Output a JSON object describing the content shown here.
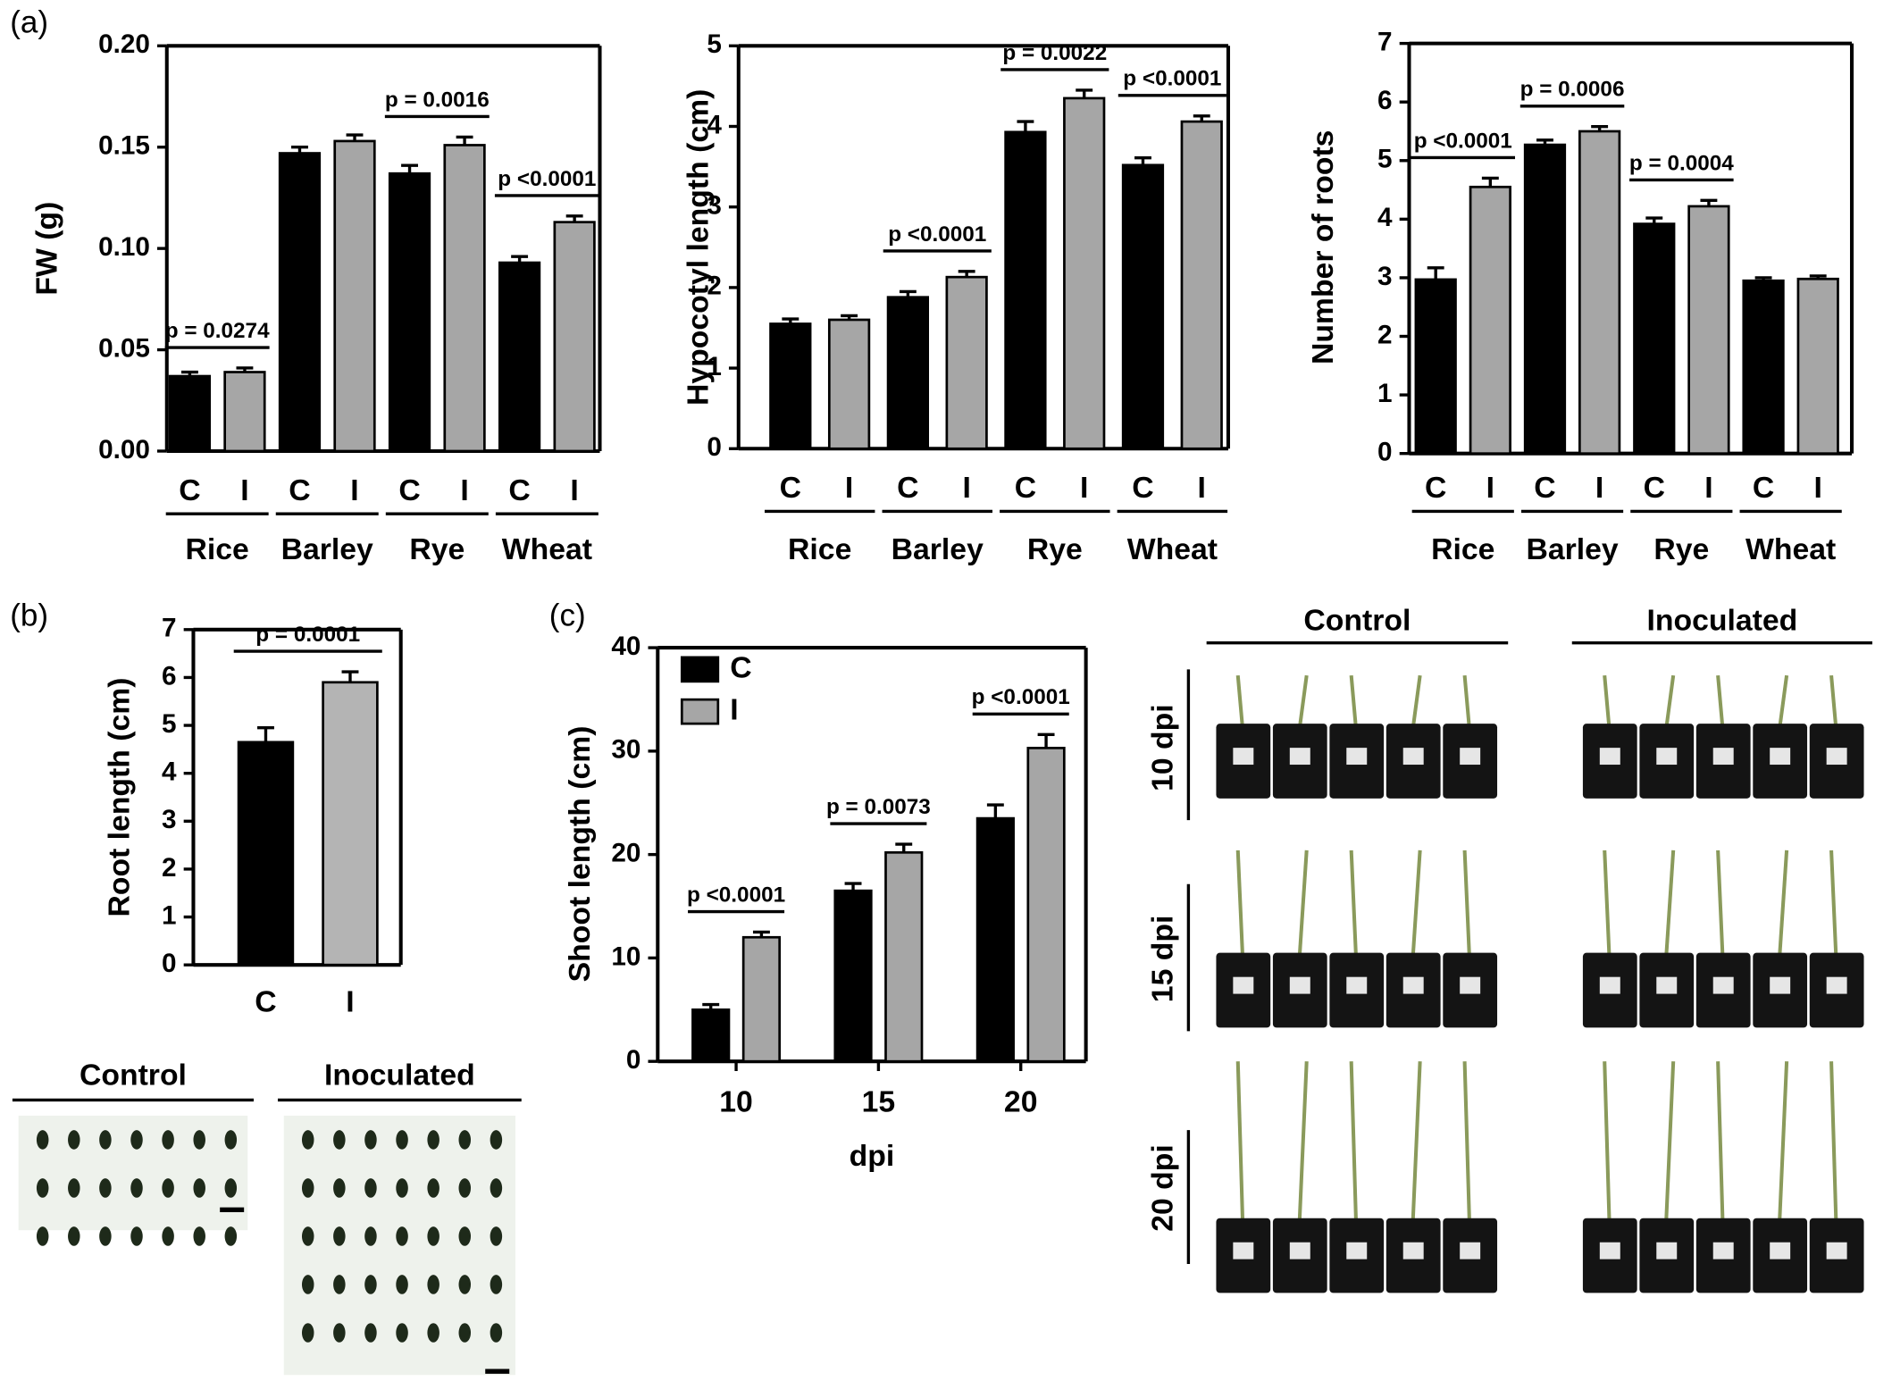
{
  "panels": [
    "(a)",
    "(b)",
    "(c)"
  ],
  "chart_data": [
    {
      "type": "bar",
      "ylabel": "FW (g)",
      "categories": [
        "C",
        "I",
        "C",
        "I",
        "C",
        "I",
        "C",
        "I"
      ],
      "groups": [
        "Rice",
        "Barley",
        "Rye",
        "Wheat"
      ],
      "values": [
        0.037,
        0.039,
        0.147,
        0.153,
        0.137,
        0.151,
        0.093,
        0.113
      ],
      "errors": [
        0.002,
        0.002,
        0.003,
        0.003,
        0.004,
        0.004,
        0.003,
        0.003
      ],
      "colors": [
        "#000000",
        "#a6a6a6",
        "#000000",
        "#a6a6a6",
        "#000000",
        "#a6a6a6",
        "#000000",
        "#a6a6a6"
      ],
      "ylim": [
        0,
        0.2
      ],
      "yticks": [
        {
          "value": 0,
          "label": "0.00"
        },
        {
          "value": 0.05,
          "label": "0.05"
        },
        {
          "value": 0.1,
          "label": "0.10"
        },
        {
          "value": 0.15,
          "label": "0.15"
        },
        {
          "value": 0.2,
          "label": "0.20"
        }
      ],
      "annotations": [
        "p = 0.0274",
        "p = 0.0016",
        "p <0.0001"
      ]
    },
    {
      "type": "bar",
      "ylabel": "Hypocotyl length (cm)",
      "categories": [
        "C",
        "I",
        "C",
        "I",
        "C",
        "I",
        "C",
        "I"
      ],
      "groups": [
        "Rice",
        "Barley",
        "Rye",
        "Wheat"
      ],
      "values": [
        1.55,
        1.6,
        1.88,
        2.13,
        3.93,
        4.35,
        3.52,
        4.06
      ],
      "errors": [
        0.06,
        0.05,
        0.07,
        0.07,
        0.13,
        0.1,
        0.09,
        0.07
      ],
      "colors": [
        "#000000",
        "#a6a6a6",
        "#000000",
        "#a6a6a6",
        "#000000",
        "#a6a6a6",
        "#000000",
        "#a6a6a6"
      ],
      "ylim": [
        0,
        5
      ],
      "yticks": [
        0,
        1,
        2,
        3,
        4,
        5
      ],
      "annotations": [
        "p <0.0001",
        "p = 0.0022",
        "p <0.0001"
      ]
    },
    {
      "type": "bar",
      "ylabel": "Number of roots",
      "categories": [
        "C",
        "I",
        "C",
        "I",
        "C",
        "I",
        "C",
        "I"
      ],
      "groups": [
        "Rice",
        "Barley",
        "Rye",
        "Wheat"
      ],
      "values": [
        2.97,
        4.55,
        5.27,
        5.5,
        3.92,
        4.22,
        2.95,
        2.98
      ],
      "errors": [
        0.2,
        0.15,
        0.08,
        0.08,
        0.1,
        0.1,
        0.05,
        0.05
      ],
      "colors": [
        "#000000",
        "#a6a6a6",
        "#000000",
        "#a6a6a6",
        "#000000",
        "#a6a6a6",
        "#000000",
        "#a6a6a6"
      ],
      "ylim": [
        0,
        7
      ],
      "yticks": [
        0,
        1,
        2,
        3,
        4,
        5,
        6,
        7
      ],
      "annotations": [
        "p <0.0001",
        "p = 0.0006",
        "p = 0.0004"
      ]
    },
    {
      "type": "bar",
      "ylabel": "Root length (cm)",
      "categories": [
        "C",
        "I"
      ],
      "values": [
        4.65,
        5.9
      ],
      "errors": [
        0.3,
        0.22
      ],
      "colors": [
        "#000000",
        "#b4b4b4"
      ],
      "ylim": [
        0,
        7
      ],
      "yticks": [
        0,
        1,
        2,
        3,
        4,
        5,
        6,
        7
      ],
      "annotations": [
        "p = 0.0001"
      ]
    },
    {
      "type": "grouped_bar",
      "ylabel": "Shoot length (cm)",
      "xlabel": "dpi",
      "categories": [
        "10",
        "15",
        "20"
      ],
      "series": [
        {
          "name": "C",
          "color": "#000000",
          "values": [
            5,
            16.5,
            23.5
          ],
          "errors": [
            0.5,
            0.7,
            1.3
          ]
        },
        {
          "name": "I",
          "color": "#a6a6a6",
          "values": [
            12,
            20.2,
            30.3
          ],
          "errors": [
            0.5,
            0.8,
            1.3
          ]
        }
      ],
      "ylim": [
        0,
        40
      ],
      "yticks": [
        0,
        10,
        20,
        30,
        40
      ],
      "legend": "upper left",
      "annotations": [
        "p <0.0001",
        "p = 0.0073",
        "p <0.0001"
      ]
    }
  ],
  "photos": {
    "b": {
      "columns": [
        "Control",
        "Inoculated"
      ]
    },
    "c": {
      "columns": [
        "Control",
        "Inoculated"
      ],
      "rows": [
        "10 dpi",
        "15 dpi",
        "20 dpi"
      ]
    }
  }
}
